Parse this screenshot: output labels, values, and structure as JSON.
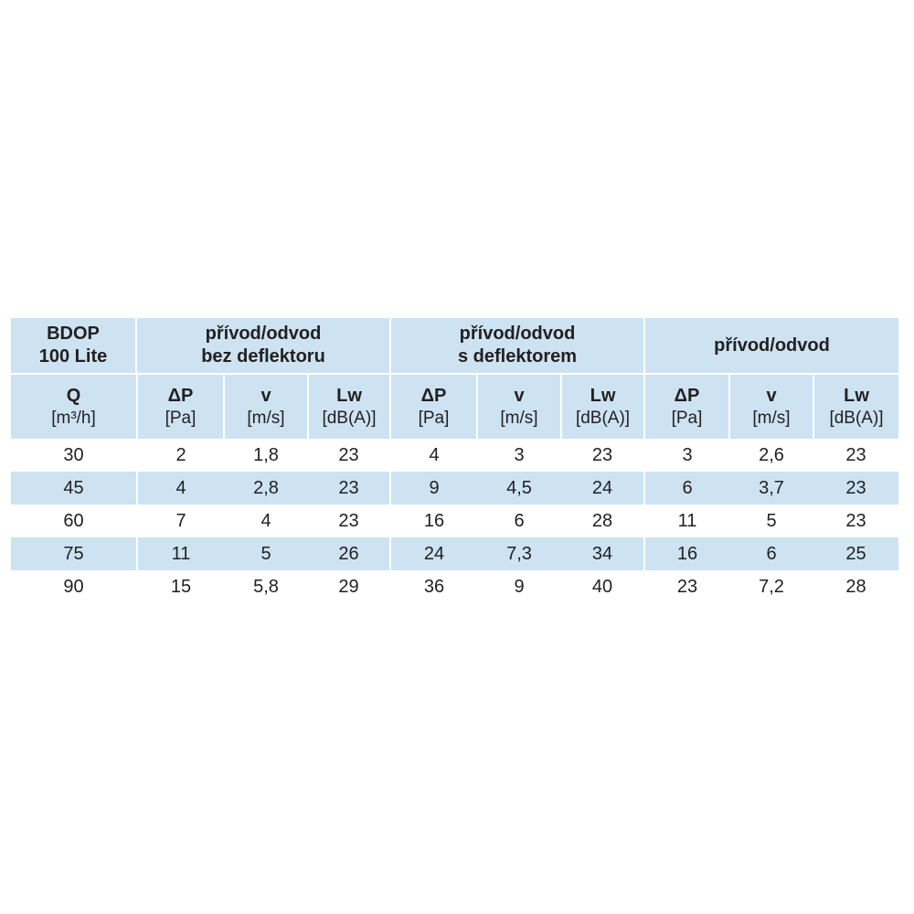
{
  "table": {
    "corner": [
      "BDOP",
      "100 Lite"
    ],
    "groups": [
      [
        "přívod/odvod",
        "bez deflektoru"
      ],
      [
        "přívod/odvod",
        "s deflektorem"
      ],
      [
        "přívod/odvod"
      ]
    ],
    "columns": [
      {
        "symbol": "Q",
        "unit": "[m³/h]"
      },
      {
        "symbol": "ΔP",
        "unit": "[Pa]"
      },
      {
        "symbol": "v",
        "unit": "[m/s]"
      },
      {
        "symbol": "Lw",
        "unit": "[dB(A)]"
      },
      {
        "symbol": "ΔP",
        "unit": "[Pa]"
      },
      {
        "symbol": "v",
        "unit": "[m/s]"
      },
      {
        "symbol": "Lw",
        "unit": "[dB(A)]"
      },
      {
        "symbol": "ΔP",
        "unit": "[Pa]"
      },
      {
        "symbol": "v",
        "unit": "[m/s]"
      },
      {
        "symbol": "Lw",
        "unit": "[dB(A)]"
      }
    ],
    "rows": [
      [
        "30",
        "2",
        "1,8",
        "23",
        "4",
        "3",
        "23",
        "3",
        "2,6",
        "23"
      ],
      [
        "45",
        "4",
        "2,8",
        "23",
        "9",
        "4,5",
        "24",
        "6",
        "3,7",
        "23"
      ],
      [
        "60",
        "7",
        "4",
        "23",
        "16",
        "6",
        "28",
        "11",
        "5",
        "23"
      ],
      [
        "75",
        "11",
        "5",
        "26",
        "24",
        "7,3",
        "34",
        "16",
        "6",
        "25"
      ],
      [
        "90",
        "15",
        "5,8",
        "29",
        "36",
        "9",
        "40",
        "23",
        "7,2",
        "28"
      ]
    ]
  }
}
